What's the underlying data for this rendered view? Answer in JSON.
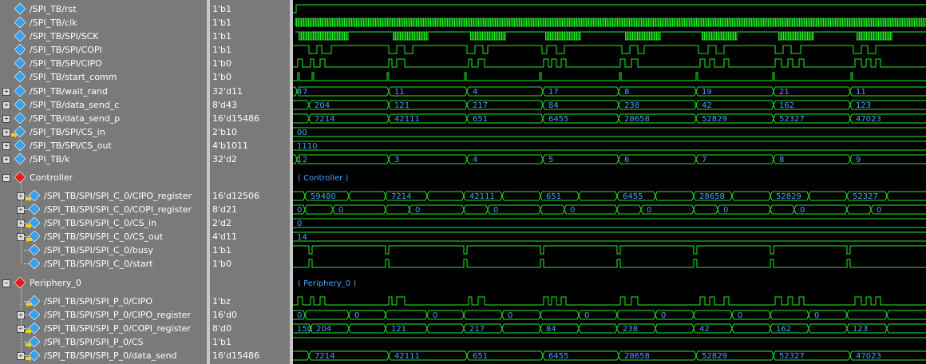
{
  "signals": [
    {
      "name": "/SPI_TB/rst",
      "value": "1'b1",
      "level": 0,
      "expand": false,
      "icon": "blue"
    },
    {
      "name": "/SPI_TB/clk",
      "value": "1'b1",
      "level": 0,
      "expand": false,
      "icon": "blue"
    },
    {
      "name": "/SPI_TB/SPI/SCK",
      "value": "1'b1",
      "level": 0,
      "expand": false,
      "icon": "blue"
    },
    {
      "name": "/SPI_TB/SPI/COPI",
      "value": "1'b1",
      "level": 0,
      "expand": false,
      "icon": "blue"
    },
    {
      "name": "/SPI_TB/SPI/CIPO",
      "value": "1'b0",
      "level": 0,
      "expand": false,
      "icon": "blue"
    },
    {
      "name": "/SPI_TB/start_comm",
      "value": "1'b0",
      "level": 0,
      "expand": false,
      "icon": "blue"
    },
    {
      "name": "/SPI_TB/wait_rand",
      "value": "32'd11",
      "level": 0,
      "expand": true,
      "icon": "blue"
    },
    {
      "name": "/SPI_TB/data_send_c",
      "value": "8'd43",
      "level": 0,
      "expand": true,
      "icon": "blue"
    },
    {
      "name": "/SPI_TB/data_send_p",
      "value": "16'd15486",
      "level": 0,
      "expand": true,
      "icon": "blue"
    },
    {
      "name": "/SPI_TB/SPI/CS_in",
      "value": "2'b10",
      "level": 0,
      "expand": true,
      "icon": "blue-in"
    },
    {
      "name": "/SPI_TB/SPI/CS_out",
      "value": "4'b1011",
      "level": 0,
      "expand": true,
      "icon": "blue"
    },
    {
      "name": "/SPI_TB/k",
      "value": "32'd2",
      "level": 0,
      "expand": true,
      "icon": "blue"
    },
    {
      "name": "Controller",
      "value": "",
      "level": 0,
      "expand": "minus",
      "icon": "red",
      "group": true
    },
    {
      "name": "/SPI_TB/SPI/SPI_C_0/CIPO_register",
      "value": "16'd12506",
      "level": 1,
      "expand": true,
      "icon": "blue-in"
    },
    {
      "name": "/SPI_TB/SPI/SPI_C_0/COPI_register",
      "value": "8'd21",
      "level": 1,
      "expand": true,
      "icon": "blue"
    },
    {
      "name": "/SPI_TB/SPI/SPI_C_0/CS_in",
      "value": "2'd2",
      "level": 1,
      "expand": true,
      "icon": "blue-in"
    },
    {
      "name": "/SPI_TB/SPI/SPI_C_0/CS_out",
      "value": "4'd11",
      "level": 1,
      "expand": true,
      "icon": "blue-out"
    },
    {
      "name": "/SPI_TB/SPI/SPI_C_0/busy",
      "value": "1'b1",
      "level": 1,
      "expand": false,
      "icon": "blue"
    },
    {
      "name": "/SPI_TB/SPI/SPI_C_0/start",
      "value": "1'b0",
      "level": 1,
      "expand": false,
      "icon": "blue"
    },
    {
      "name": "Periphery_0",
      "value": "",
      "level": 0,
      "expand": "minus",
      "icon": "red",
      "group": true
    },
    {
      "name": "/SPI_TB/SPI/SPI_P_0/CIPO",
      "value": "1'bz",
      "level": 1,
      "expand": false,
      "icon": "blue-out"
    },
    {
      "name": "/SPI_TB/SPI/SPI_P_0/CIPO_register",
      "value": "16'd0",
      "level": 1,
      "expand": true,
      "icon": "blue"
    },
    {
      "name": "/SPI_TB/SPI/SPI_P_0/COPI_register",
      "value": "8'd0",
      "level": 1,
      "expand": true,
      "icon": "blue-in"
    },
    {
      "name": "/SPI_TB/SPI/SPI_P_0/CS",
      "value": "1'b1",
      "level": 1,
      "expand": false,
      "icon": "blue-in"
    },
    {
      "name": "/SPI_TB/SPI/SPI_P_0/data_send",
      "value": "16'd15486",
      "level": 1,
      "expand": true,
      "icon": "blue-in"
    }
  ],
  "bus_labels": {
    "wait_rand": [
      "4",
      "7",
      "11",
      "4",
      "17",
      "8",
      "19",
      "21",
      "11"
    ],
    "data_send_c": [
      "204",
      "121",
      "217",
      "84",
      "238",
      "42",
      "162",
      "123"
    ],
    "data_send_p": [
      "7214",
      "42111",
      "651",
      "6455",
      "28658",
      "52829",
      "52327",
      "47023"
    ],
    "cs_in": [
      "00"
    ],
    "cs_out": [
      "1110"
    ],
    "k": [
      "1",
      "2",
      "3",
      "4",
      "5",
      "6",
      "7",
      "8",
      "9"
    ],
    "controller_group": "( Controller )",
    "cipo_register": [
      "59480",
      "7214",
      "42111",
      "651",
      "6455",
      "28658",
      "52829",
      "52327"
    ],
    "copi_register": [
      "0",
      "0",
      "0",
      "0",
      "0",
      "0",
      "0",
      "0",
      "0"
    ],
    "c_cs_in": [
      "0"
    ],
    "c_cs_out": [
      "14"
    ],
    "periphery_group": "( Periphery_0 )",
    "p_cipo_register": [
      "0",
      "0",
      "0",
      "0",
      "0",
      "0",
      "0",
      "0"
    ],
    "p_copi_register": [
      "150",
      "204",
      "121",
      "217",
      "84",
      "238",
      "42",
      "162",
      "123"
    ],
    "p_data_send": [
      "7214",
      "42111",
      "651",
      "6455",
      "28658",
      "52829",
      "52327",
      "47023"
    ]
  },
  "colors": {
    "wave": "#22ee22",
    "bus_text": "#4aa3ff",
    "panel": "#7a7a7a",
    "background": "#000000"
  }
}
